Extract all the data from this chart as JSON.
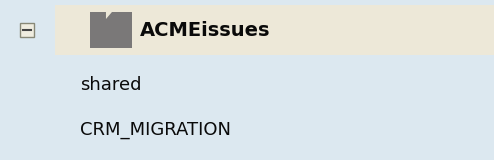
{
  "background_color": "#dce8f0",
  "highlight_color": "#ede8d8",
  "text_color": "#0a0a0a",
  "folder_color": "#7a7878",
  "title_text": "ACMEissues",
  "item1_text": "shared",
  "item2_text": "CRM_MIGRATION",
  "title_fontsize": 14,
  "item_fontsize": 13,
  "fig_width": 4.94,
  "fig_height": 1.6,
  "dpi": 100
}
